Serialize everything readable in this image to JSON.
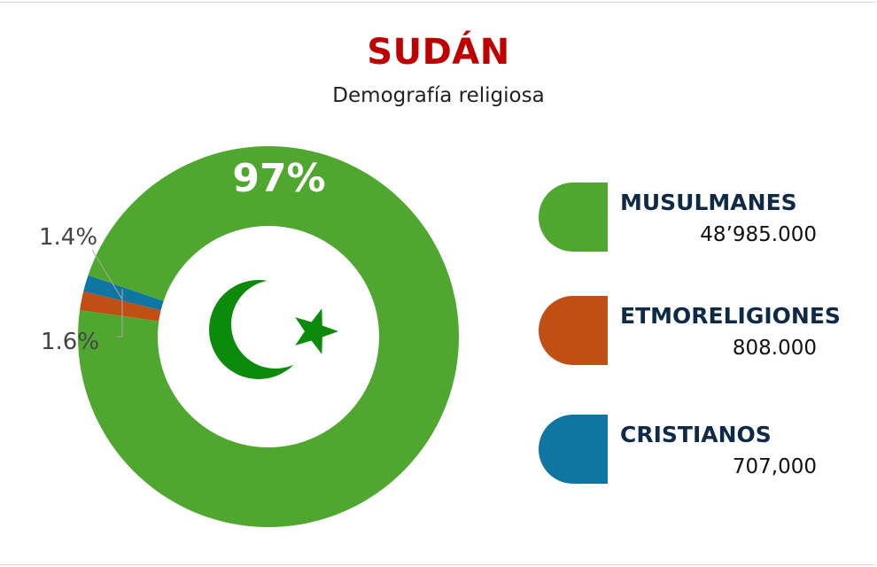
{
  "title": "SUDÁN",
  "subtitle": "Demografía religiosa",
  "chart_data": {
    "type": "pie",
    "donut": true,
    "title": "SUDÁN",
    "subtitle": "Demografía religiosa",
    "slices": [
      {
        "name": "MUSULMANES",
        "percent": 97,
        "label": "97%",
        "value_text": "48’985.000",
        "color": "#4fa72f"
      },
      {
        "name": "ETMORELIGIONES",
        "percent": 1.6,
        "label": "1.6%",
        "value_text": "808.000",
        "color": "#c04f16"
      },
      {
        "name": "CRISTIANOS",
        "percent": 1.4,
        "label": "1.4%",
        "value_text": "707,000",
        "color": "#0e76a0"
      }
    ],
    "legend_placement": "right",
    "center_icon": "crescent-star-icon",
    "center_icon_color": "#0b8a0b"
  }
}
